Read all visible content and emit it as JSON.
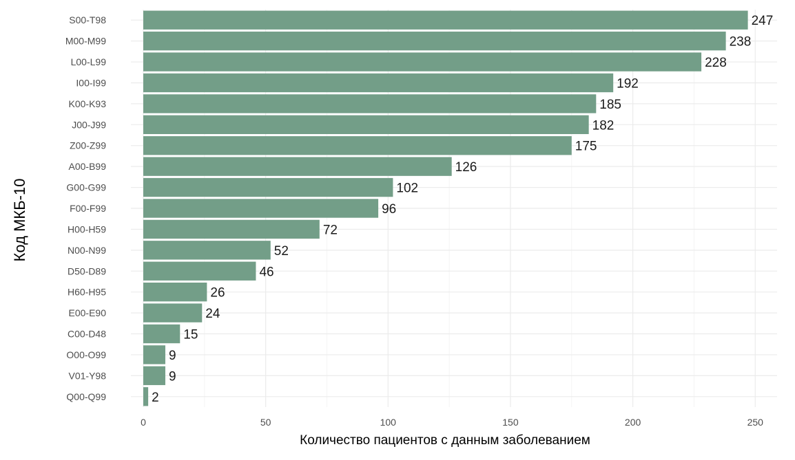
{
  "chart_data": {
    "type": "bar",
    "orientation": "horizontal",
    "title": "",
    "xlabel": "Количество пациентов с данным заболеванием",
    "ylabel": "Код МКБ-10",
    "xlim": [
      0,
      260
    ],
    "xticks": [
      0,
      50,
      100,
      150,
      200,
      250
    ],
    "grid": true,
    "bar_color": "#739e88",
    "categories": [
      "S00-T98",
      "M00-M99",
      "L00-L99",
      "I00-I99",
      "K00-K93",
      "J00-J99",
      "Z00-Z99",
      "A00-B99",
      "G00-G99",
      "F00-F99",
      "H00-H59",
      "N00-N99",
      "D50-D89",
      "H60-H95",
      "E00-E90",
      "C00-D48",
      "O00-O99",
      "V01-Y98",
      "Q00-Q99"
    ],
    "values": [
      247,
      238,
      228,
      192,
      185,
      182,
      175,
      126,
      102,
      96,
      72,
      52,
      46,
      26,
      24,
      15,
      9,
      9,
      2
    ]
  }
}
